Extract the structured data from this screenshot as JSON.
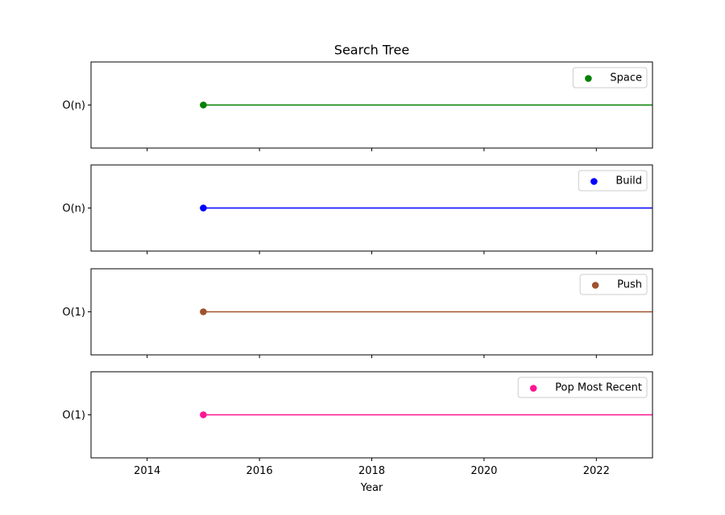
{
  "chart_data": {
    "type": "line",
    "title": "Search Tree",
    "xlabel": "Year",
    "xlim": [
      2013,
      2023
    ],
    "x_ticks": [
      2014,
      2016,
      2018,
      2020,
      2022
    ],
    "grid": false,
    "legend_placement": "top-right",
    "series": [
      {
        "name": "Space",
        "y_label": "O(n)",
        "color": "#008000",
        "start_x": 2015
      },
      {
        "name": "Build",
        "y_label": "O(n)",
        "color": "#0000ff",
        "start_x": 2015
      },
      {
        "name": "Push",
        "y_label": "O(1)",
        "color": "#a0522d",
        "start_x": 2015
      },
      {
        "name": "Pop Most Recent",
        "y_label": "O(1)",
        "color": "#ff1493",
        "start_x": 2015
      }
    ]
  }
}
